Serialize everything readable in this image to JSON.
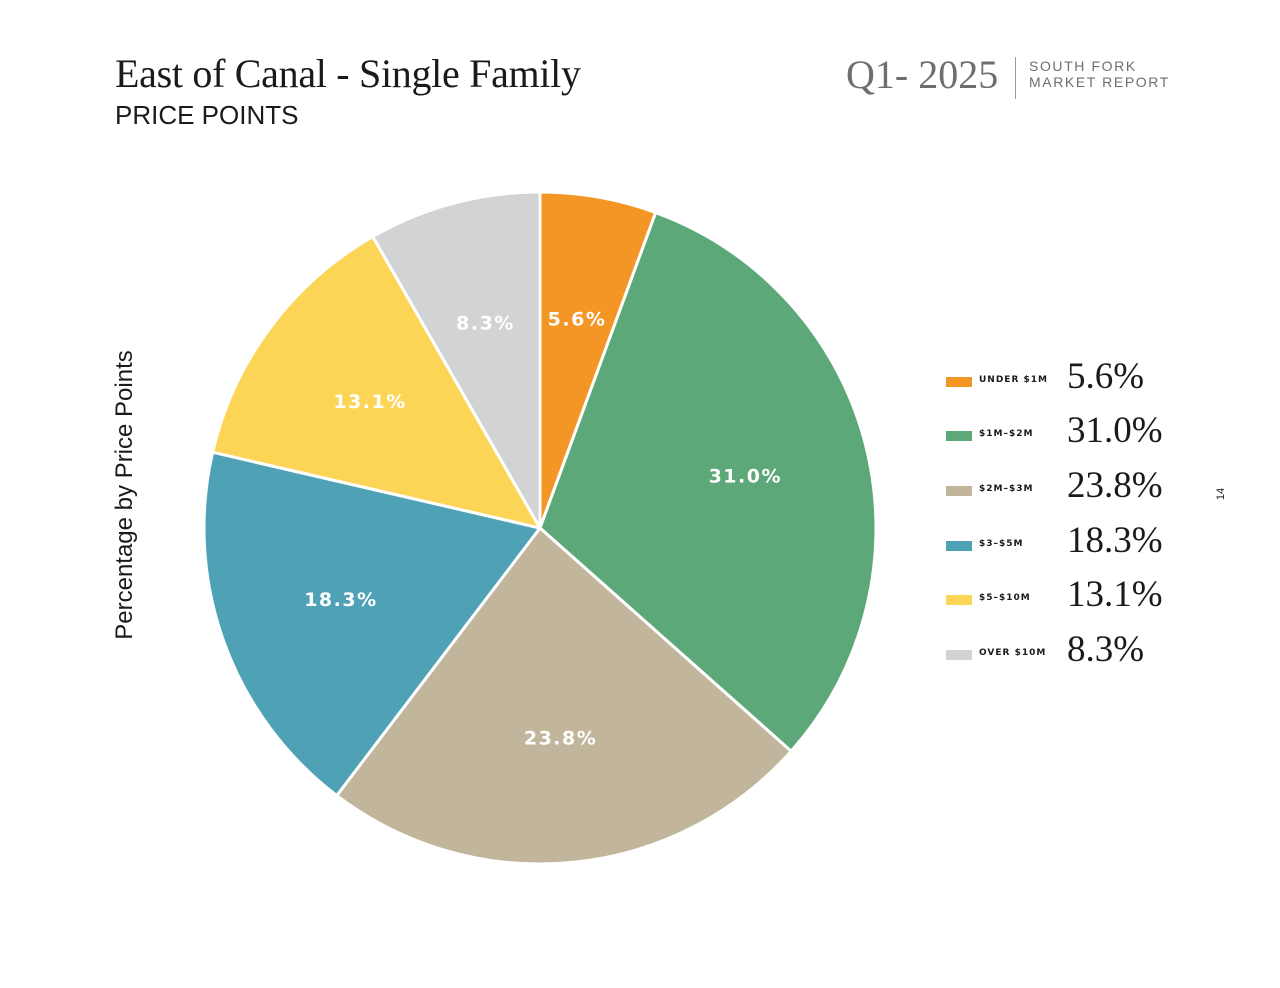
{
  "header": {
    "title": "East of Canal - Single Family",
    "subtitle": "PRICE POINTS",
    "quarter": "Q1- 2025",
    "report_line1": "SOUTH FORK",
    "report_line2": "MARKET REPORT",
    "page_number": "14"
  },
  "chart_data": {
    "type": "pie",
    "ylabel": "Percentage by Price Points",
    "categories": [
      "UNDER $1M",
      "$1M–$2M",
      "$2M–$3M",
      "$3–$5M",
      "$5–$10M",
      "OVER $10M"
    ],
    "values": [
      5.6,
      31.0,
      23.8,
      18.3,
      13.1,
      8.3
    ],
    "slice_labels": [
      "5.6%",
      "31.0%",
      "23.8%",
      "18.3%",
      "13.1%",
      "8.3%"
    ],
    "colors": [
      "#F39625",
      "#5CA878",
      "#C1B59B",
      "#4FA2B6",
      "#FDD556",
      "#D2D3D5"
    ],
    "start": "12 o'clock",
    "direction": "clockwise",
    "legend_position": "right"
  },
  "legend": {
    "items": [
      {
        "label": "UNDER $1M",
        "value": "5.6%",
        "color": "#F39625"
      },
      {
        "label": "$1M–$2M",
        "value": "31.0%",
        "color": "#5CA878"
      },
      {
        "label": "$2M–$3M",
        "value": "23.8%",
        "color": "#C1B59B"
      },
      {
        "label": "$3–$5M",
        "value": "18.3%",
        "color": "#4FA2B6"
      },
      {
        "label": "$5–$10M",
        "value": "13.1%",
        "color": "#FDD556"
      },
      {
        "label": "OVER $10M",
        "value": "8.3%",
        "color": "#D2D3D5"
      }
    ]
  }
}
